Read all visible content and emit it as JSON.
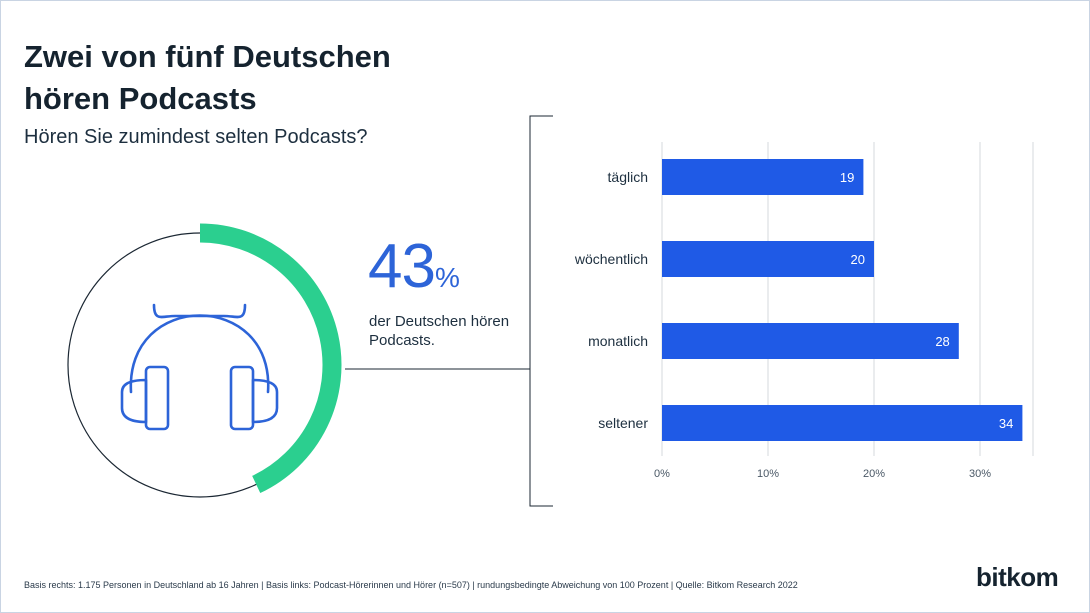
{
  "title": "Zwei von fünf Deutschen hören Podcasts",
  "subtitle": "Hören Sie zumindest selten Podcasts?",
  "highlight": {
    "number": "43",
    "symbol": "%",
    "caption": "der Deutschen hören Podcasts.",
    "value": 0.43
  },
  "icon": "headphones-icon",
  "chart_data": {
    "type": "bar",
    "orientation": "horizontal",
    "categories": [
      "täglich",
      "wöchentlich",
      "monatlich",
      "seltener"
    ],
    "values": [
      19,
      20,
      28,
      34
    ],
    "value_labels": [
      "19",
      "20",
      "28",
      "34"
    ],
    "xticks": [
      "0%",
      "10%",
      "20%",
      "30%"
    ],
    "xlim": [
      0,
      35
    ],
    "grid": true,
    "bar_color": "#1f5ae6"
  },
  "colors": {
    "accent": "#2bcf8f",
    "blue": "#2d64d8",
    "bar": "#1f5ae6"
  },
  "footnote": "Basis rechts: 1.175 Personen in Deutschland ab 16 Jahren | Basis links: Podcast-Hörerinnen und Hörer (n=507) | rundungsbedingte Abweichung von 100 Prozent | Quelle: Bitkom Research 2022",
  "logo": "bitkom"
}
